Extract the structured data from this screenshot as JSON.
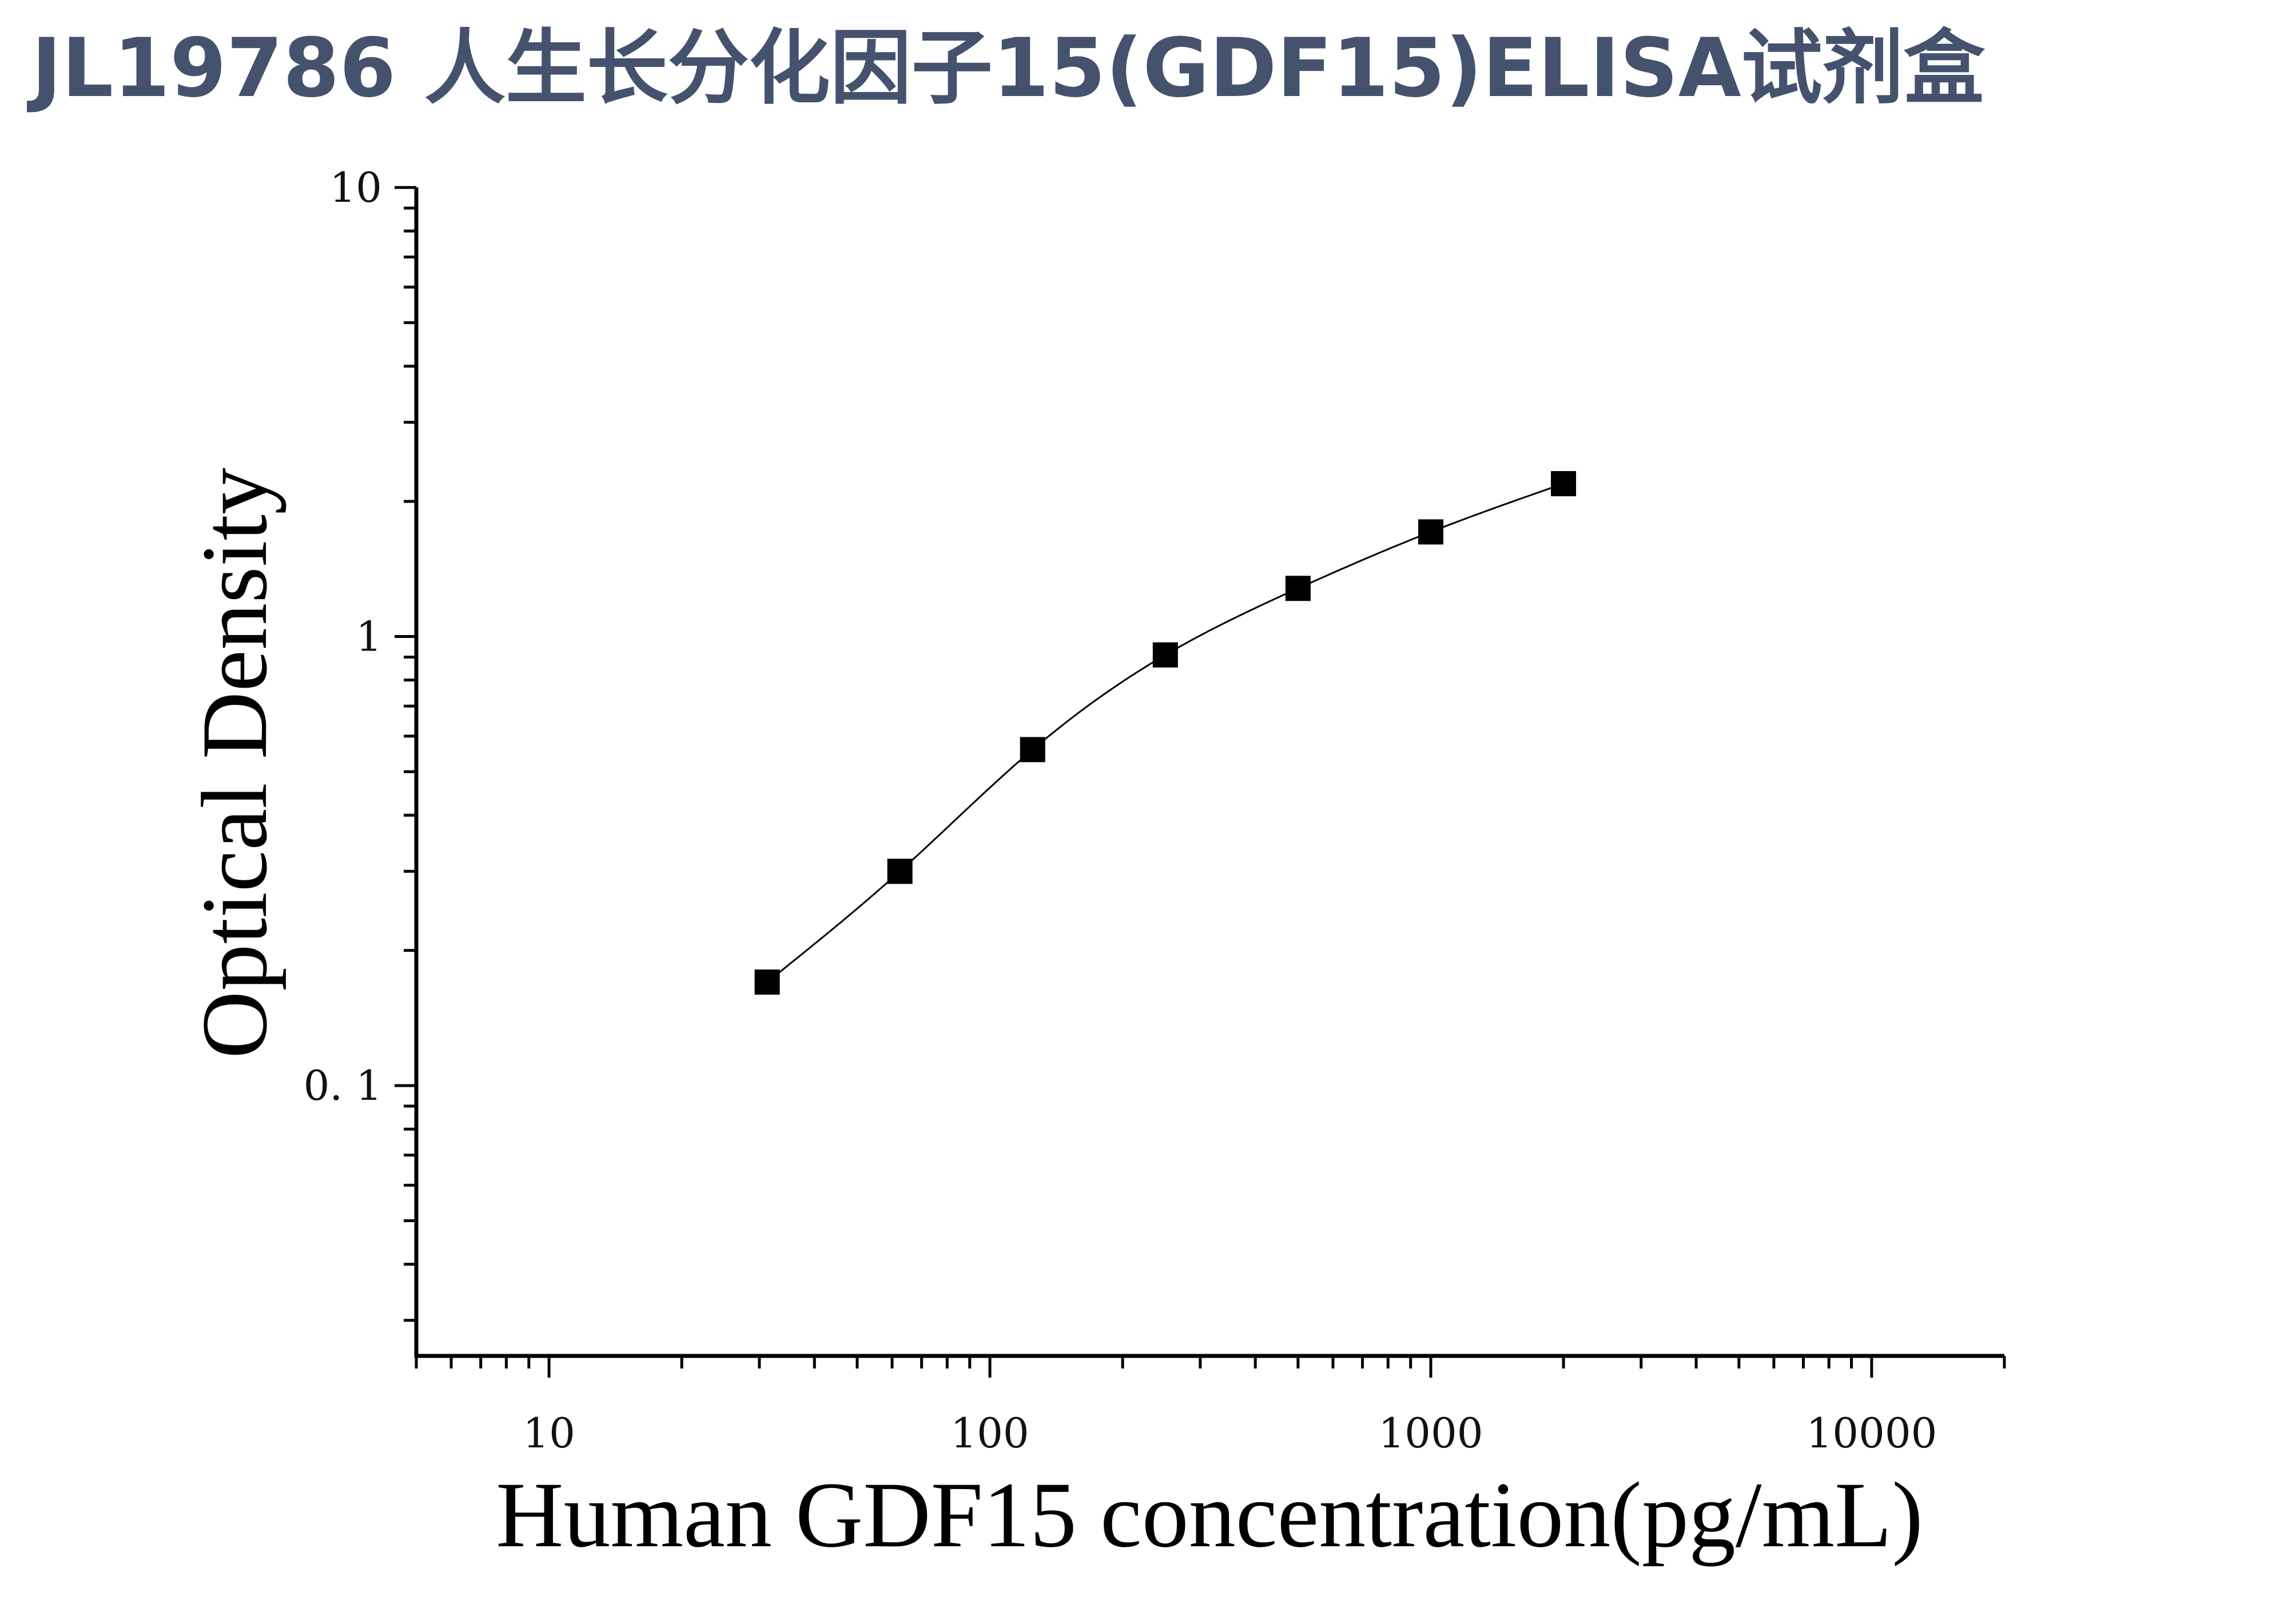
{
  "title": "JL19786 人生长分化因子15(GDF15)ELISA试剂盒",
  "chart_data": {
    "type": "scatter",
    "title": "",
    "xlabel": "Human GDF15 concentration(pg/mL)",
    "ylabel": "Optical Density",
    "x_scale": "log",
    "y_scale": "log",
    "xlim": [
      5,
      20000
    ],
    "ylim": [
      0.025,
      10
    ],
    "x_ticks": [
      {
        "value": 10,
        "label": "10"
      },
      {
        "value": 100,
        "label": "100"
      },
      {
        "value": 1000,
        "label": "1000"
      },
      {
        "value": 10000,
        "label": "10000"
      }
    ],
    "y_ticks": [
      {
        "value": 0.1,
        "label": "0. 1"
      },
      {
        "value": 1,
        "label": "1"
      },
      {
        "value": 10,
        "label": "10"
      }
    ],
    "grid": false,
    "legend": "none",
    "series": [
      {
        "marker": "square",
        "color": "#000000",
        "x": [
          31.25,
          62.5,
          125,
          250,
          500,
          1000,
          2000
        ],
        "y": [
          0.17,
          0.3,
          0.56,
          0.91,
          1.28,
          1.71,
          2.19
        ]
      }
    ],
    "fit_curve": {
      "color": "#000000",
      "x_range": [
        31.25,
        2000
      ]
    }
  }
}
